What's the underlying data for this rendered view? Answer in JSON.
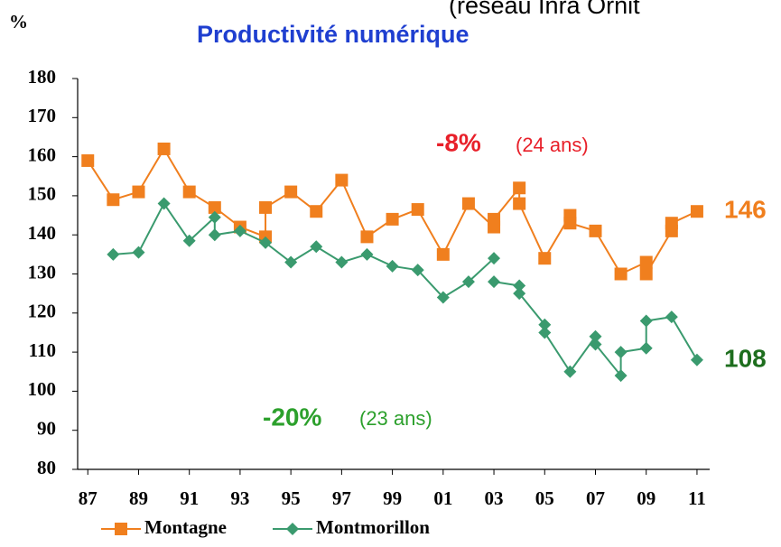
{
  "chart_data": {
    "type": "line",
    "title": "Productivité numérique",
    "header_fragment": "(réseau Inra Ornit",
    "y_label": "%",
    "annotations": [
      "-8%",
      "(24 ans)",
      "-20%",
      "(23 ans)",
      "146",
      "108"
    ],
    "xlim": [
      86.6,
      111.5
    ],
    "xticks": [
      87,
      89,
      91,
      93,
      95,
      97,
      99,
      {
        "value": 101,
        "label": "01"
      },
      {
        "value": 103,
        "label": "03"
      },
      {
        "value": 105,
        "label": "05"
      },
      {
        "value": 107,
        "label": "07"
      },
      {
        "value": 109,
        "label": "09"
      },
      {
        "value": 111,
        "label": "11"
      }
    ],
    "ylim": [
      80,
      180
    ],
    "yticks": [
      80,
      90,
      100,
      110,
      120,
      130,
      140,
      150,
      160,
      170,
      180
    ],
    "series": [
      {
        "name": "Montagne",
        "color": "#f07f1e",
        "marker": "square",
        "x": [
          87,
          88,
          89,
          90,
          91,
          92,
          93,
          94,
          94,
          95,
          96,
          97,
          98,
          99,
          100,
          101,
          102,
          103,
          103,
          104,
          104,
          105,
          106,
          106,
          107,
          108,
          109,
          109,
          110,
          110,
          111
        ],
        "values": [
          159,
          149,
          151,
          162,
          151,
          147,
          142,
          139.5,
          147,
          151,
          146,
          154,
          139.5,
          144,
          146.5,
          135,
          148,
          142,
          144,
          152,
          148,
          134,
          145,
          143,
          141,
          130,
          133,
          130,
          141,
          143,
          146
        ]
      },
      {
        "name": "Montmorillon",
        "color": "#3a9a6e",
        "marker": "diamond",
        "x": [
          88,
          89,
          90,
          91,
          92,
          92,
          93,
          94,
          95,
          96,
          97,
          98,
          99,
          100,
          101,
          102,
          103,
          103,
          103,
          104,
          104,
          105,
          105,
          106,
          107,
          107,
          108,
          108,
          109,
          109,
          110,
          111
        ],
        "values": [
          135,
          135.5,
          148,
          138.5,
          144.5,
          140,
          141,
          138,
          133,
          137,
          133,
          135,
          132,
          131,
          124,
          128,
          134,
          null,
          128,
          127,
          125,
          117,
          115,
          105,
          114,
          112,
          104,
          110,
          111,
          118,
          119,
          108
        ]
      }
    ]
  }
}
